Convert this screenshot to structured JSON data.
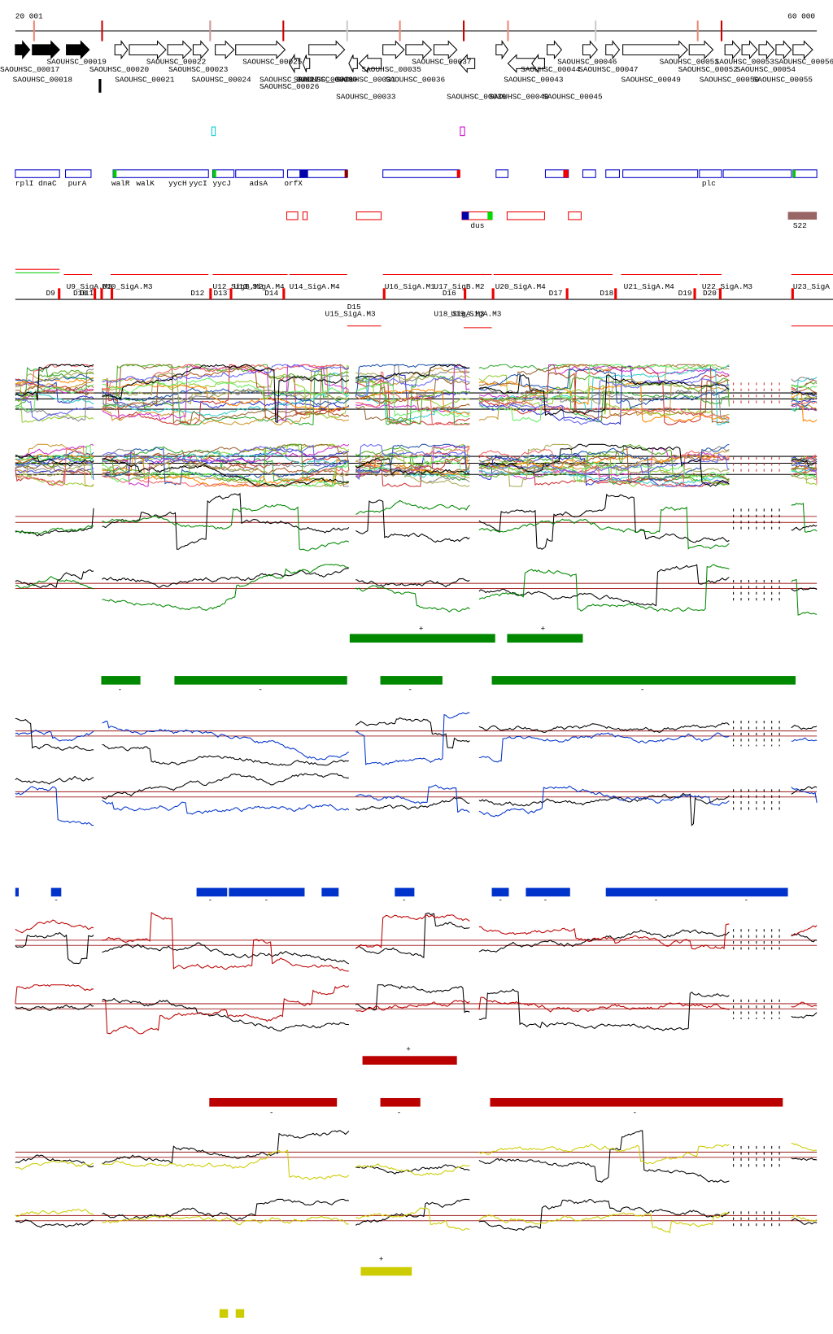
{
  "scale": {
    "start": "20 001",
    "end": "60 000"
  },
  "genes": [
    "SAOUHSC_00019",
    "SAOUHSC_00022",
    "SAOUHSC_00025",
    "SAOUHSC_00037",
    "SAOUHSC_00046",
    "SAOUHSC_00051",
    "SAOUHSC_00053",
    "SAOUHSC_00056",
    "SAOUHSC_00017",
    "SAOUHSC_00020",
    "SAOUHSC_00023",
    "SAOUHSC_00029",
    "SAOUHSC_00035",
    "SAOUHSC_00044",
    "SAOUHSC_00047",
    "SAOUHSC_00052",
    "SAOUHSC_00054",
    "SAOUHSC_00018",
    "SAOUHSC_00021",
    "SAOUHSC_00024",
    "SAOUHSC_00027",
    "SAOUHSC_00030",
    "SAOUHSC_00031",
    "SAOUHSC_00036",
    "SAOUHSC_00043",
    "SAOUHSC_00049",
    "SAOUHSC_00050",
    "SAOUHSC_00055",
    "SAOUHSC_00026",
    "SAOUHSC_00033",
    "SAOUHSC_00039",
    "SAOUHSC_00040",
    "SAOUHSC_00045"
  ],
  "annotations": [
    "rplI",
    "dnaC",
    "purA",
    "walR",
    "walK",
    "yycH",
    "yycI",
    "yycJ",
    "adsA",
    "orfX",
    "plc",
    "dus",
    "S22"
  ],
  "operons": [
    "U9_SigA.M3",
    "U10_SigA.M3",
    "U12_SigB.M2",
    "U13_SigA.M4",
    "U14_SigA.M4",
    "U16_SigA.M1",
    "U17_SigB.M2",
    "U20_SigA.M4",
    "U21_SigA.M4",
    "U22_SigA.M3",
    "U23_SigA",
    "U15_SigA.M3",
    "U18_SigA.M3",
    "U19_SigA.M3"
  ],
  "downs": [
    "D9",
    "D10",
    "D11",
    "D12",
    "D13",
    "D14",
    "D15",
    "D16",
    "D17",
    "D18",
    "D19",
    "D20"
  ],
  "segment_signs": {
    "green_plus": [
      "+",
      "+"
    ],
    "green_minus": [
      "-",
      "-",
      "-",
      "-"
    ],
    "blue_minus": [
      "-",
      "-",
      "-",
      "-",
      "-",
      "-",
      "-",
      "-"
    ],
    "red_plus": [
      "+"
    ],
    "red_minus": [
      "-",
      "-",
      "-"
    ],
    "yellow_plus": [
      "+"
    ]
  }
}
